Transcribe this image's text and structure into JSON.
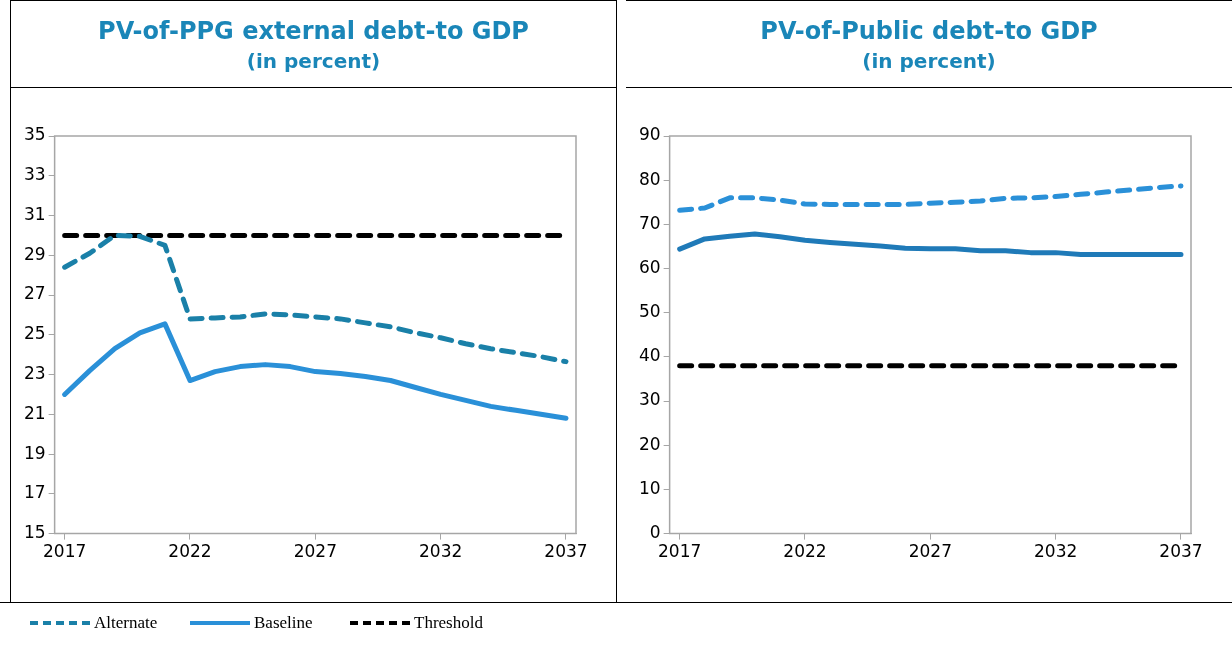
{
  "chart_data": [
    {
      "type": "line",
      "title": "PV-of-PPG external debt-to GDP",
      "subtitle": "(in percent)",
      "x": [
        2017,
        2018,
        2019,
        2020,
        2021,
        2022,
        2023,
        2024,
        2025,
        2026,
        2027,
        2028,
        2029,
        2030,
        2031,
        2032,
        2033,
        2034,
        2035,
        2036,
        2037
      ],
      "xlim": [
        2016.6,
        2037.4
      ],
      "xticks": [
        2017,
        2022,
        2027,
        2032,
        2037
      ],
      "ylim": [
        15,
        35
      ],
      "yticks": [
        15,
        17,
        19,
        21,
        23,
        25,
        27,
        29,
        31,
        33,
        35
      ],
      "legend": "bottom",
      "marker": "none",
      "series": [
        {
          "name": "Alternate",
          "color": "#1a80a8",
          "line_style": "dashed",
          "values": [
            28.4,
            29.1,
            30.0,
            29.95,
            29.5,
            25.8,
            25.85,
            25.9,
            26.05,
            26.0,
            25.9,
            25.8,
            25.6,
            25.4,
            25.1,
            24.85,
            24.55,
            24.3,
            24.1,
            23.9,
            23.65
          ]
        },
        {
          "name": "Baseline",
          "color": "#2a90d8",
          "line_style": "solid",
          "values": [
            22.0,
            23.2,
            24.3,
            25.1,
            25.55,
            22.7,
            23.15,
            23.4,
            23.5,
            23.4,
            23.15,
            23.05,
            22.9,
            22.7,
            22.35,
            22.0,
            21.7,
            21.4,
            21.2,
            21.0,
            20.8
          ]
        },
        {
          "name": "Threshold",
          "color": "#000000",
          "line_style": "dashed",
          "values": [
            30,
            30,
            30,
            30,
            30,
            30,
            30,
            30,
            30,
            30,
            30,
            30,
            30,
            30,
            30,
            30,
            30,
            30,
            30,
            30,
            30
          ]
        }
      ]
    },
    {
      "type": "line",
      "title": "PV-of-Public debt-to GDP",
      "subtitle": "(in percent)",
      "x": [
        2017,
        2018,
        2019,
        2020,
        2021,
        2022,
        2023,
        2024,
        2025,
        2026,
        2027,
        2028,
        2029,
        2030,
        2031,
        2032,
        2033,
        2034,
        2035,
        2036,
        2037
      ],
      "xlim": [
        2016.6,
        2037.4
      ],
      "xticks": [
        2017,
        2022,
        2027,
        2032,
        2037
      ],
      "ylim": [
        0,
        90
      ],
      "yticks": [
        0,
        10,
        20,
        30,
        40,
        50,
        60,
        70,
        80,
        90
      ],
      "marker": "none",
      "series": [
        {
          "color": "#2a90d8",
          "line_style": "dashed",
          "values": [
            73.2,
            73.7,
            76.0,
            76.0,
            75.5,
            74.6,
            74.5,
            74.5,
            74.5,
            74.5,
            74.8,
            75.0,
            75.3,
            75.9,
            76.0,
            76.3,
            76.8,
            77.3,
            77.8,
            78.3,
            78.7
          ]
        },
        {
          "color": "#1f7ab8",
          "line_style": "solid",
          "values": [
            64.4,
            66.7,
            67.3,
            67.8,
            67.2,
            66.4,
            65.9,
            65.5,
            65.1,
            64.6,
            64.5,
            64.5,
            64.0,
            64.0,
            63.6,
            63.6,
            63.2,
            63.2,
            63.2,
            63.2,
            63.2
          ]
        },
        {
          "color": "#000000",
          "line_style": "dashed",
          "values": [
            38,
            38,
            38,
            38,
            38,
            38,
            38,
            38,
            38,
            38,
            38,
            38,
            38,
            38,
            38,
            38,
            38,
            38,
            38,
            38,
            38
          ]
        }
      ]
    }
  ]
}
